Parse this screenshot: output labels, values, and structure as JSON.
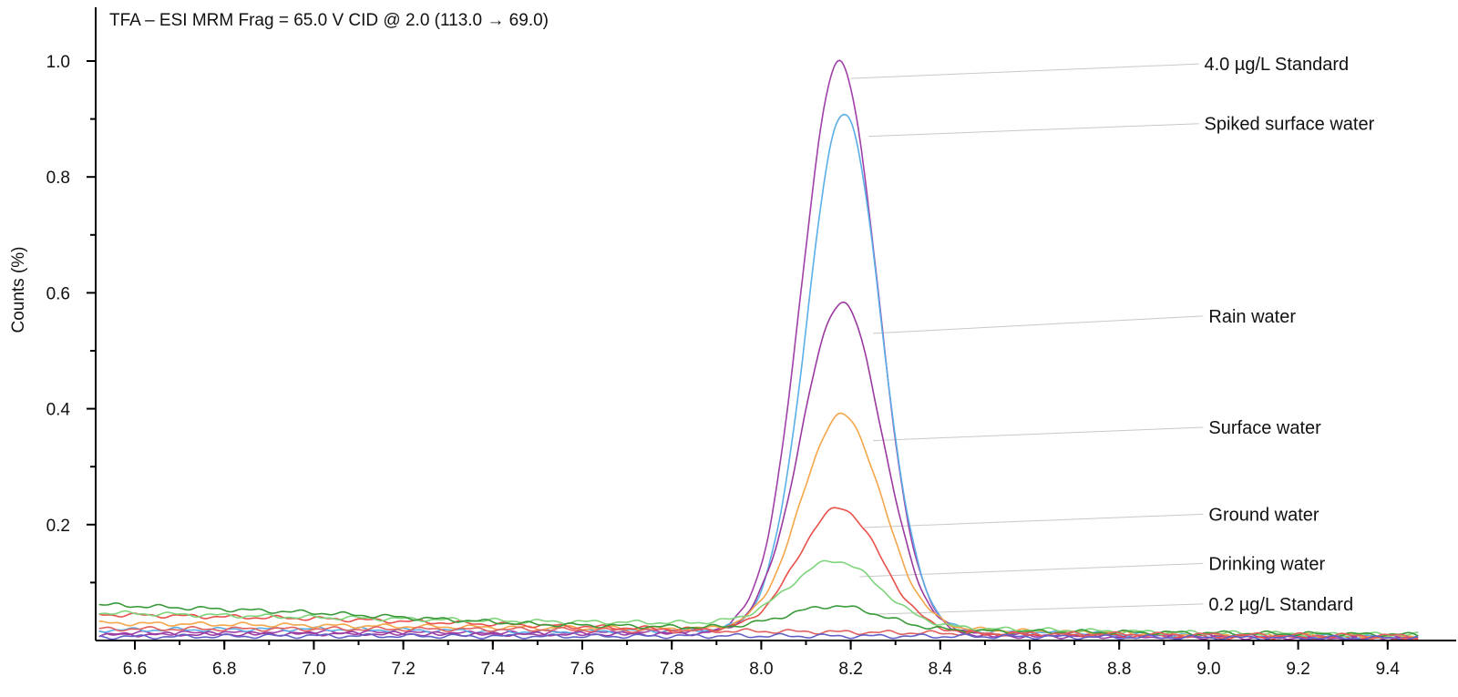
{
  "chart_data": {
    "type": "line",
    "title": "TFA – ESI MRM Frag = 65.0 V CID @ 2.0 (113.0 → 69.0)",
    "ylabel": "Counts (%)",
    "xlabel": "",
    "xlim": [
      6.52,
      9.47
    ],
    "ylim": [
      0,
      1.05
    ],
    "x_ticks": [
      "6.6",
      "6.8",
      "7.0",
      "7.2",
      "7.4",
      "7.6",
      "7.8",
      "8.0",
      "8.2",
      "8.4",
      "8.6",
      "8.8",
      "9.0",
      "9.2",
      "9.4"
    ],
    "y_ticks": [
      "0.2",
      "0.4",
      "0.6",
      "0.8",
      "1.0"
    ],
    "grid": false,
    "legend": "none",
    "series": [
      {
        "name": "4.0 µg/L Standard",
        "color": "#a040a8",
        "baseline": [
          [
            6.52,
            0.012
          ],
          [
            7.0,
            0.014
          ],
          [
            7.5,
            0.012
          ],
          [
            7.9,
            0.015
          ],
          [
            8.5,
            0.01
          ],
          [
            9.0,
            0.007
          ],
          [
            9.47,
            0.005
          ]
        ],
        "peak": {
          "center": 8.175,
          "height": 0.985,
          "sigma": 0.085
        }
      },
      {
        "name": "Spiked surface water",
        "color": "#5aaee8",
        "baseline": [
          [
            6.52,
            0.018
          ],
          [
            7.0,
            0.02
          ],
          [
            7.5,
            0.015
          ],
          [
            7.9,
            0.018
          ],
          [
            8.5,
            0.015
          ],
          [
            9.0,
            0.008
          ],
          [
            9.47,
            0.006
          ]
        ],
        "peak": {
          "center": 8.185,
          "height": 0.895,
          "sigma": 0.082
        }
      },
      {
        "name": "Rain water",
        "color": "#9a3aa0",
        "baseline": [
          [
            6.52,
            0.01
          ],
          [
            7.0,
            0.012
          ],
          [
            7.5,
            0.011
          ],
          [
            7.9,
            0.012
          ],
          [
            8.5,
            0.008
          ],
          [
            9.0,
            0.006
          ],
          [
            9.47,
            0.004
          ]
        ],
        "peak": {
          "center": 8.18,
          "height": 0.573,
          "sigma": 0.09
        }
      },
      {
        "name": "Surface water",
        "color": "#f3a64a",
        "baseline": [
          [
            6.52,
            0.03
          ],
          [
            7.0,
            0.026
          ],
          [
            7.5,
            0.022
          ],
          [
            7.9,
            0.02
          ],
          [
            8.5,
            0.018
          ],
          [
            9.0,
            0.01
          ],
          [
            9.47,
            0.007
          ]
        ],
        "peak": {
          "center": 8.18,
          "height": 0.37,
          "sigma": 0.09
        }
      },
      {
        "name": "Ground water",
        "color": "#e8504a",
        "baseline": [
          [
            6.52,
            0.045
          ],
          [
            7.0,
            0.038
          ],
          [
            7.5,
            0.026
          ],
          [
            7.9,
            0.018
          ],
          [
            8.5,
            0.012
          ],
          [
            9.0,
            0.006
          ],
          [
            9.47,
            0.004
          ]
        ],
        "peak": {
          "center": 8.175,
          "height": 0.213,
          "sigma": 0.092
        }
      },
      {
        "name": "Drinking water",
        "color": "#7ed47a",
        "baseline": [
          [
            6.52,
            0.048
          ],
          [
            7.0,
            0.04
          ],
          [
            7.5,
            0.033
          ],
          [
            7.9,
            0.03
          ],
          [
            8.5,
            0.02
          ],
          [
            9.0,
            0.013
          ],
          [
            9.47,
            0.01
          ]
        ],
        "peak": {
          "center": 8.165,
          "height": 0.112,
          "sigma": 0.1
        }
      },
      {
        "name": "0.2 µg/L Standard",
        "color": "#3a9a3a",
        "baseline": [
          [
            6.52,
            0.062
          ],
          [
            7.0,
            0.048
          ],
          [
            7.5,
            0.028
          ],
          [
            7.9,
            0.022
          ],
          [
            8.5,
            0.016
          ],
          [
            9.0,
            0.013
          ],
          [
            9.47,
            0.01
          ]
        ],
        "peak": {
          "center": 8.165,
          "height": 0.04,
          "sigma": 0.105
        }
      },
      {
        "name": "",
        "color": "#e06060",
        "baseline": [
          [
            6.52,
            0.02
          ],
          [
            7.0,
            0.02
          ],
          [
            7.5,
            0.019
          ],
          [
            8.0,
            0.016
          ],
          [
            8.5,
            0.012
          ],
          [
            9.0,
            0.01
          ],
          [
            9.47,
            0.008
          ]
        ],
        "peak": {
          "center": 8.2,
          "height": 0.0,
          "sigma": 0.1
        }
      },
      {
        "name": "",
        "color": "#6060c8",
        "baseline": [
          [
            6.52,
            0.006
          ],
          [
            7.0,
            0.008
          ],
          [
            7.5,
            0.007
          ],
          [
            8.0,
            0.008
          ],
          [
            8.5,
            0.007
          ],
          [
            9.0,
            0.005
          ],
          [
            9.47,
            0.004
          ]
        ],
        "peak": {
          "center": 8.2,
          "height": 0.0,
          "sigma": 0.1
        }
      }
    ],
    "annotations": [
      {
        "text": "4.0 µg/L Standard",
        "x": 8.99,
        "y": 0.995,
        "point": [
          8.2,
          0.97
        ]
      },
      {
        "text": "Spiked surface water",
        "x": 8.99,
        "y": 0.892,
        "point": [
          8.24,
          0.87
        ]
      },
      {
        "text": "Rain water",
        "x": 9.0,
        "y": 0.56,
        "point": [
          8.25,
          0.53
        ]
      },
      {
        "text": "Surface water",
        "x": 9.0,
        "y": 0.368,
        "point": [
          8.25,
          0.345
        ]
      },
      {
        "text": "Ground water",
        "x": 9.0,
        "y": 0.218,
        "point": [
          8.23,
          0.195
        ]
      },
      {
        "text": "Drinking water",
        "x": 9.0,
        "y": 0.133,
        "point": [
          8.22,
          0.11
        ]
      },
      {
        "text": "0.2 µg/L Standard",
        "x": 9.0,
        "y": 0.063,
        "point": [
          8.24,
          0.045
        ]
      }
    ]
  }
}
